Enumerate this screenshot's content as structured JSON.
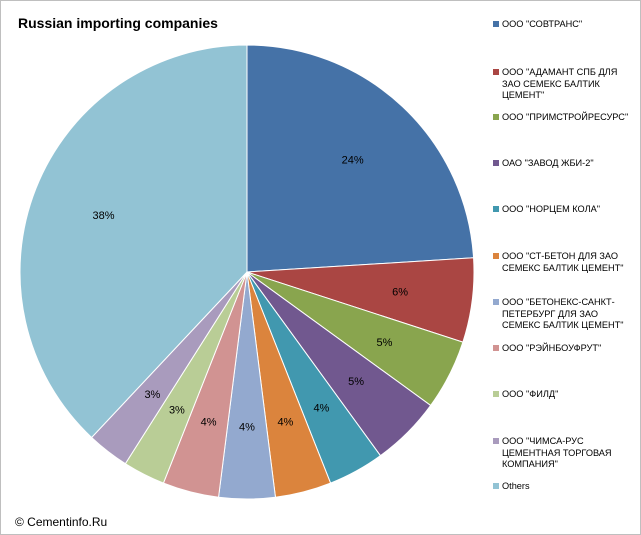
{
  "chart_data": {
    "type": "pie",
    "title": "Russian importing companies",
    "slices": [
      {
        "label": "ООО \"СОВТРАНС\"",
        "value": 24,
        "display": "24%",
        "color": "#4572a7"
      },
      {
        "label": "ООО \"АДАМАНТ СПБ ДЛЯ ЗАО СЕМЕКС БАЛТИК ЦЕМЕНТ\"",
        "value": 6,
        "display": "6%",
        "color": "#aa4643"
      },
      {
        "label": "ООО \"ПРИМСТРОЙРЕСУРС\"",
        "value": 5,
        "display": "5%",
        "color": "#89a54e"
      },
      {
        "label": "ОАО \"ЗАВОД ЖБИ-2\"",
        "value": 5,
        "display": "5%",
        "color": "#71588f"
      },
      {
        "label": "ООО \"НОРЦЕМ КОЛА\"",
        "value": 4,
        "display": "4%",
        "color": "#4198af"
      },
      {
        "label": "ООО \"СТ-БЕТОН ДЛЯ ЗАО СЕМЕКС БАЛТИК ЦЕМЕНТ\"",
        "value": 4,
        "display": "4%",
        "color": "#db843d"
      },
      {
        "label": "ООО \"БЕТОНЕКС-САНКТ-ПЕТЕРБУРГ ДЛЯ ЗАО СЕМЕКС БАЛТИК ЦЕМЕНТ\"",
        "value": 4,
        "display": "4%",
        "color": "#93a9cf"
      },
      {
        "label": "ООО \"РЭЙНБОУФРУТ\"",
        "value": 4,
        "display": "4%",
        "color": "#d19392"
      },
      {
        "label": "ООО \"ФИЛД\"",
        "value": 3,
        "display": "3%",
        "color": "#b9cd96"
      },
      {
        "label": "ООО \"ЧИМСА-РУС ЦЕМЕНТНАЯ ТОРГОВАЯ КОМПАНИЯ\"",
        "value": 3,
        "display": "3%",
        "color": "#a99bbd"
      },
      {
        "label": "Others",
        "value": 38,
        "display": "38%",
        "color": "#92c3d4"
      }
    ],
    "legend_position": "right"
  },
  "footer": {
    "copyright": "© Cementinfo.Ru"
  }
}
